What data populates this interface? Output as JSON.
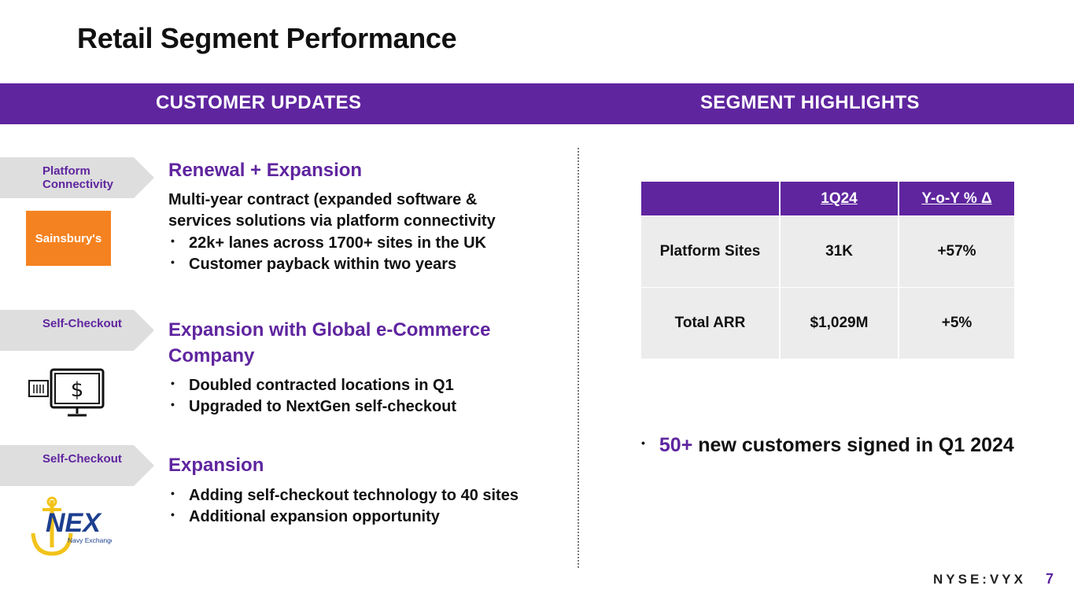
{
  "title": "Retail Segment Performance",
  "banner": {
    "left": "CUSTOMER UPDATES",
    "right": "SEGMENT HIGHLIGHTS"
  },
  "customers": [
    {
      "tag": "Platform Connectivity",
      "logo": "Sainsbury's",
      "heading": "Renewal + Expansion",
      "body": "Multi-year contract (expanded software & services solutions via platform connectivity",
      "bullets": [
        "22k+ lanes across 1700+ sites in the UK",
        "Customer payback within two years"
      ]
    },
    {
      "tag": "Self-Checkout",
      "logo": "self-checkout-monitor-icon",
      "heading": "Expansion with Global e-Commerce Company",
      "bullets": [
        "Doubled contracted locations in Q1",
        "Upgraded to NextGen self-checkout"
      ]
    },
    {
      "tag": "Self-Checkout",
      "logo": "NEX",
      "logo_sub": "Navy Exchange",
      "heading": "Expansion",
      "bullets": [
        "Adding self-checkout technology to 40 sites",
        "Additional expansion opportunity"
      ]
    }
  ],
  "kpi_table": {
    "columns": [
      "",
      "1Q24",
      "Y-o-Y % Δ"
    ],
    "rows": [
      [
        "Platform Sites",
        "31K",
        "+57%"
      ],
      [
        "Total ARR",
        "$1,029M",
        "+5%"
      ]
    ]
  },
  "highlight": {
    "accent": "50+",
    "text": "new customers signed in Q1 2024"
  },
  "footer": {
    "ticker": "NYSE:VYX",
    "page": "7"
  },
  "colors": {
    "accent": "#5f259f",
    "sainsburys": "#f58220",
    "nex_blue": "#1d3f8f",
    "nex_gold": "#f2c318"
  }
}
